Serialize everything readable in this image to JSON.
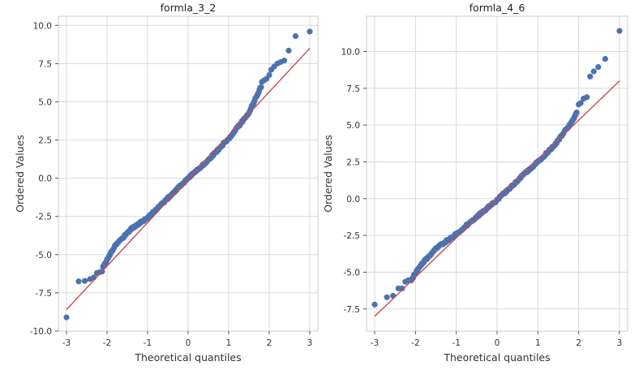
{
  "chart_data": [
    {
      "type": "scatter",
      "title": "formla_3_2",
      "xlabel": "Theoretical quantiles",
      "ylabel": "Ordered Values",
      "xlim": [
        -3.2,
        3.2
      ],
      "ylim": [
        -10.0,
        10.6
      ],
      "xticks": [
        -3,
        -2,
        -1,
        0,
        1,
        2,
        3
      ],
      "yticks": [
        -10.0,
        -7.5,
        -5.0,
        -2.5,
        0.0,
        2.5,
        5.0,
        7.5,
        10.0
      ],
      "grid": true,
      "fit_line": {
        "x": [
          -3,
          3
        ],
        "y": [
          -8.6,
          8.5
        ]
      },
      "extreme_points": {
        "x": [
          -3.0,
          -2.7,
          -2.55,
          -2.42,
          -2.33,
          -2.25,
          -2.18,
          -2.12,
          1.82,
          1.87,
          1.93,
          2.0,
          2.05,
          2.12,
          2.2,
          2.28,
          2.37,
          2.48,
          2.65,
          3.0
        ],
        "y": [
          -9.1,
          -6.75,
          -6.72,
          -6.6,
          -6.5,
          -6.2,
          -6.15,
          -6.1,
          6.3,
          6.4,
          6.5,
          6.75,
          7.1,
          7.3,
          7.5,
          7.6,
          7.7,
          8.35,
          9.3,
          9.6
        ]
      },
      "body_profile": {
        "x": [
          -2.1,
          -1.8,
          -1.4,
          -1.0,
          -0.5,
          0.0,
          0.5,
          1.0,
          1.3,
          1.5,
          1.8
        ],
        "y": [
          -5.8,
          -4.4,
          -3.3,
          -2.6,
          -1.3,
          0.0,
          1.2,
          2.6,
          3.6,
          4.3,
          6.0
        ]
      }
    },
    {
      "type": "scatter",
      "title": "formla_4_6",
      "xlabel": "Theoretical quantiles",
      "ylabel": "Ordered Values",
      "xlim": [
        -3.2,
        3.2
      ],
      "ylim": [
        -9.0,
        12.4
      ],
      "xticks": [
        -3,
        -2,
        -1,
        0,
        1,
        2,
        3
      ],
      "yticks": [
        -7.5,
        -5.0,
        -2.5,
        0.0,
        2.5,
        5.0,
        7.5,
        10.0
      ],
      "grid": true,
      "fit_line": {
        "x": [
          -3,
          3
        ],
        "y": [
          -8.0,
          8.0
        ]
      },
      "extreme_points": {
        "x": [
          -3.0,
          -2.7,
          -2.55,
          -2.42,
          -2.33,
          -2.25,
          -2.18,
          2.0,
          2.05,
          2.12,
          2.2,
          2.28,
          2.37,
          2.48,
          2.65,
          3.0
        ],
        "y": [
          -7.2,
          -6.7,
          -6.6,
          -6.1,
          -6.1,
          -5.65,
          -5.55,
          6.4,
          6.5,
          6.8,
          6.9,
          8.3,
          8.65,
          8.95,
          9.5,
          11.4
        ]
      },
      "body_profile": {
        "x": [
          -2.1,
          -1.9,
          -1.5,
          -1.0,
          -0.4,
          0.0,
          0.6,
          1.0,
          1.4,
          1.8,
          1.95
        ],
        "y": [
          -5.5,
          -4.6,
          -3.4,
          -2.4,
          -1.0,
          -0.1,
          1.5,
          2.5,
          3.6,
          5.1,
          5.8
        ]
      }
    }
  ]
}
